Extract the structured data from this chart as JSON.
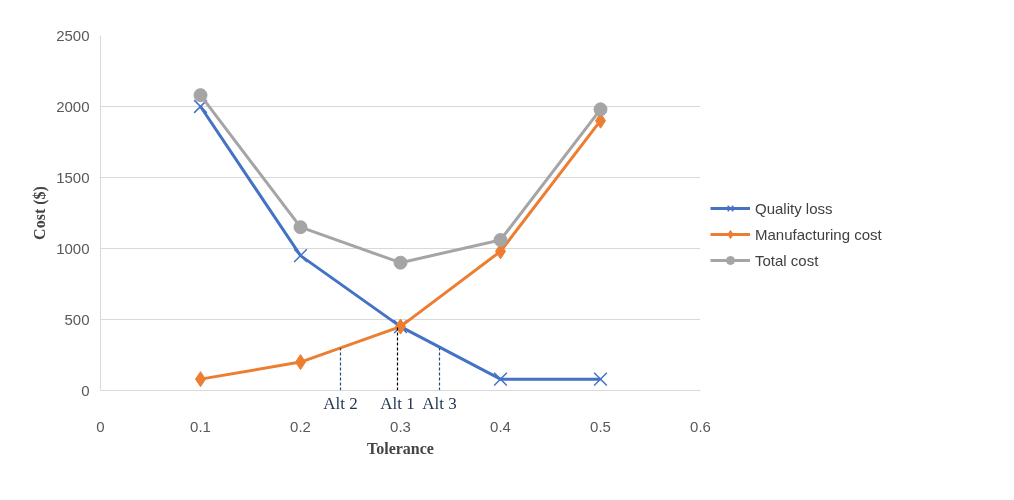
{
  "chart_data": {
    "type": "line",
    "xlabel": "Tolerance",
    "ylabel": "Cost ($)",
    "x": [
      0.1,
      0.2,
      0.3,
      0.4,
      0.5
    ],
    "xlim": [
      0,
      0.6
    ],
    "xticks": [
      0,
      0.1,
      0.2,
      0.3,
      0.4,
      0.5,
      0.6
    ],
    "ylim": [
      0,
      2500
    ],
    "yticks": [
      0,
      500,
      1000,
      1500,
      2000,
      2500
    ],
    "grid": "y",
    "legend": "right",
    "series": [
      {
        "name": "Quality loss",
        "color": "#4472c4",
        "marker": "cross",
        "values": [
          2000,
          950,
          450,
          80,
          80
        ]
      },
      {
        "name": "Manufacturing cost",
        "color": "#ed7d31",
        "marker": "diamond",
        "values": [
          80,
          200,
          450,
          980,
          1900
        ]
      },
      {
        "name": "Total cost",
        "color": "#a5a5a5",
        "marker": "circle",
        "values": [
          2080,
          1150,
          900,
          1060,
          1980
        ]
      },
      {
        "name": "Alt 2",
        "color": "#1f4e79",
        "marker": "none",
        "line_style": "dashed",
        "x": [
          0.24,
          0.24
        ],
        "values": [
          0,
          300
        ]
      },
      {
        "name": "Alt 1",
        "color": "#000000",
        "marker": "none",
        "line_style": "dashed",
        "x": [
          0.297,
          0.297
        ],
        "values": [
          0,
          450
        ]
      },
      {
        "name": "Alt 3",
        "color": "#1f4e79",
        "marker": "none",
        "line_style": "dashed",
        "x": [
          0.339,
          0.339
        ],
        "values": [
          0,
          300
        ]
      }
    ]
  }
}
